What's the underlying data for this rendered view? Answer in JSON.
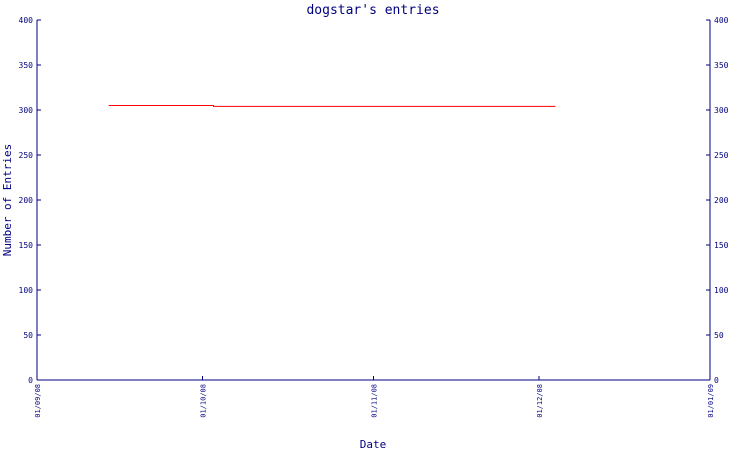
{
  "chart_data": {
    "type": "line",
    "title": "dogstar's entries",
    "xlabel": "Date",
    "ylabel": "Number of Entries",
    "ylim": [
      0,
      400
    ],
    "yticks": [
      0,
      50,
      100,
      150,
      200,
      250,
      300,
      350,
      400
    ],
    "xlim": [
      "2008-09-01",
      "2009-01-01"
    ],
    "xticks": [
      {
        "date": "2008-09-01",
        "label": "01/09/08"
      },
      {
        "date": "2008-10-01",
        "label": "01/10/08"
      },
      {
        "date": "2008-11-01",
        "label": "01/11/08"
      },
      {
        "date": "2008-12-01",
        "label": "01/12/08"
      },
      {
        "date": "2009-01-01",
        "label": "01/01/09"
      }
    ],
    "grid": false,
    "y_axis_labels": "both sides",
    "colors": {
      "axis": "#000080",
      "line": "#ff0000",
      "text": "#000080"
    },
    "series": [
      {
        "points": [
          {
            "x": "2008-09-14",
            "y": 305
          },
          {
            "x": "2008-10-03",
            "y": 305
          },
          {
            "x": "2008-10-03",
            "y": 304
          },
          {
            "x": "2008-12-04",
            "y": 304
          }
        ]
      }
    ]
  }
}
